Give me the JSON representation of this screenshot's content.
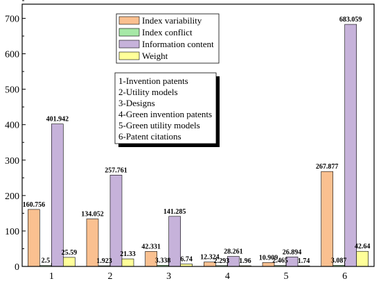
{
  "chart_data": {
    "type": "bar",
    "categories": [
      "1",
      "2",
      "3",
      "4",
      "5",
      "6"
    ],
    "ylim": [
      0,
      740
    ],
    "yticks": [
      0,
      100,
      200,
      300,
      400,
      500,
      600,
      700
    ],
    "series": [
      {
        "name": "Index variability",
        "color": "#fac090",
        "values": [
          160.756,
          134.052,
          42.331,
          12.324,
          10.909,
          267.877
        ],
        "labels": [
          "160.756",
          "134.052",
          "42.331",
          "12.324",
          "10.909",
          "267.877"
        ]
      },
      {
        "name": "Index conflict",
        "color": "#a6e8a6",
        "values": [
          2.5,
          1.923,
          3.338,
          2.293,
          2.465,
          3.087
        ],
        "labels": [
          "2.5",
          "1.923",
          "3.338",
          "2.293",
          "2.465",
          "3.087"
        ]
      },
      {
        "name": "Information content",
        "color": "#c6b2da",
        "values": [
          401.942,
          257.761,
          141.285,
          28.261,
          26.894,
          683.059
        ],
        "labels": [
          "401.942",
          "257.761",
          "141.285",
          "28.261",
          "26.894",
          "683.059"
        ]
      },
      {
        "name": "Weight",
        "color": "#ffff99",
        "values": [
          25.59,
          21.33,
          6.74,
          1.96,
          1.74,
          42.64
        ],
        "labels": [
          "25.59",
          "21.33",
          "6.74",
          "1.96",
          "1.74",
          "42.64"
        ]
      }
    ],
    "notes": [
      "1-Invention patents",
      "2-Utility models",
      "3-Designs",
      "4-Green invention patents",
      "5-Green utility models",
      "6-Patent citations"
    ],
    "legend_position": "top-center"
  }
}
